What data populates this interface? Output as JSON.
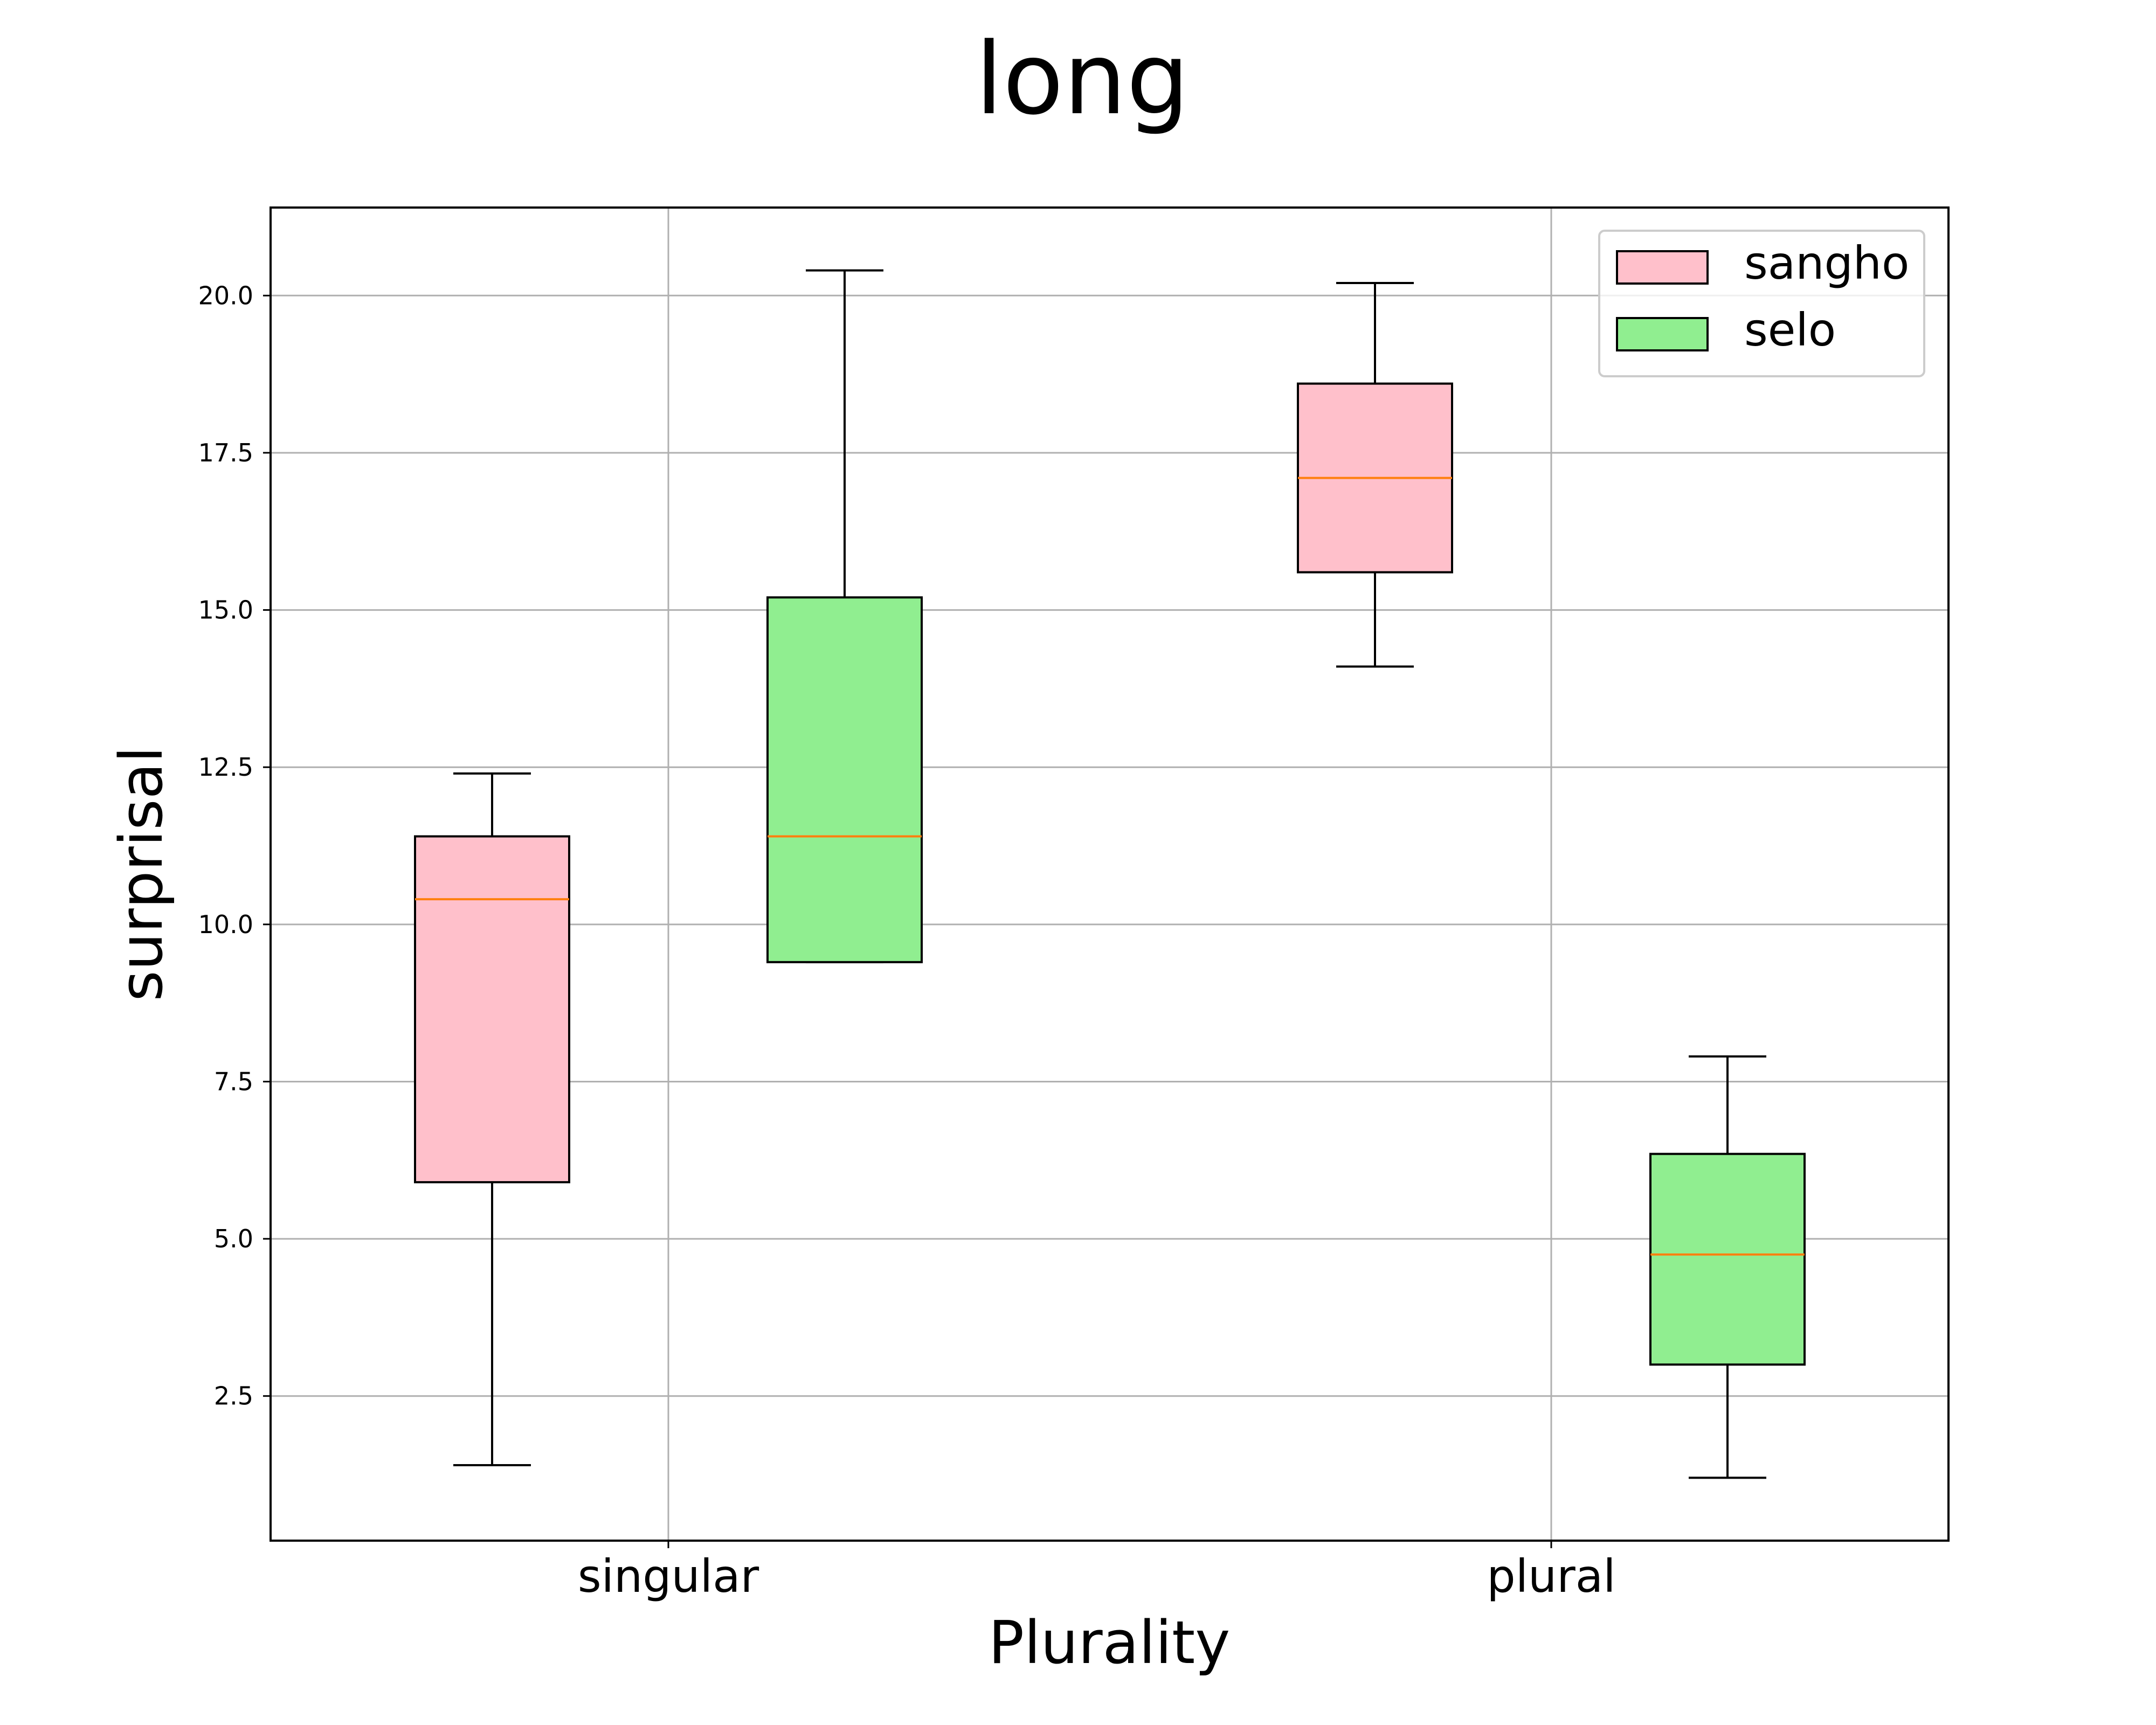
{
  "chart_data": {
    "type": "box",
    "title": "long",
    "xlabel": "Plurality",
    "ylabel": "surprisal",
    "categories": [
      "singular",
      "plural"
    ],
    "ylim": [
      0.2,
      21.4
    ],
    "yticks": [
      "2.5",
      "5.0",
      "7.5",
      "10.0",
      "12.5",
      "15.0",
      "17.5",
      "20.0"
    ],
    "grid": true,
    "legend_position": "top-right",
    "series": [
      {
        "name": "sangho",
        "color": "#ffc0cb",
        "boxes": [
          {
            "category": "singular",
            "whisker_low": 1.4,
            "q1": 5.9,
            "median": 10.4,
            "q3": 11.4,
            "whisker_high": 12.4
          },
          {
            "category": "plural",
            "whisker_low": 14.1,
            "q1": 15.6,
            "median": 17.1,
            "q3": 18.6,
            "whisker_high": 20.2
          }
        ]
      },
      {
        "name": "selo",
        "color": "#90ee90",
        "boxes": [
          {
            "category": "singular",
            "whisker_low": 9.4,
            "q1": 9.4,
            "median": 11.4,
            "q3": 15.2,
            "whisker_high": 20.4
          },
          {
            "category": "plural",
            "whisker_low": 1.2,
            "q1": 3.0,
            "median": 4.75,
            "q3": 6.35,
            "whisker_high": 7.9
          }
        ]
      }
    ],
    "median_color": "#ff7f0e",
    "edge_color": "#000000",
    "grid_color": "#b0b0b0"
  }
}
